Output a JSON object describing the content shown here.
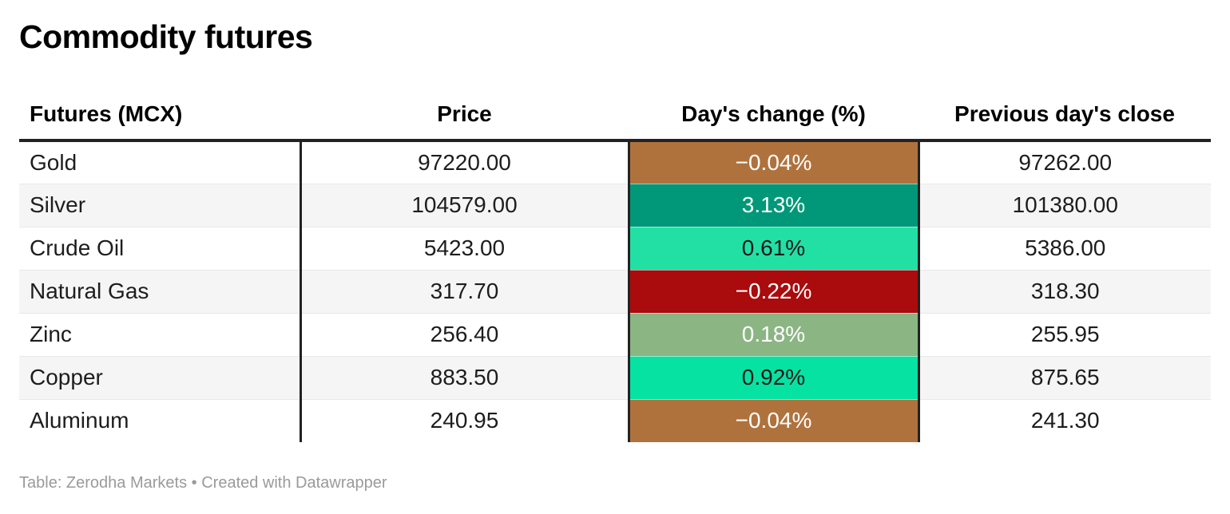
{
  "title": "Commodity futures",
  "chart_data": {
    "type": "table",
    "title": "Commodity futures",
    "columns": [
      "Futures (MCX)",
      "Price",
      "Day's change (%)",
      "Previous day's close"
    ],
    "rows": [
      {
        "futures": "Gold",
        "price": 97220.0,
        "days_change_pct": -0.04,
        "previous_close": 97262.0
      },
      {
        "futures": "Silver",
        "price": 104579.0,
        "days_change_pct": 3.13,
        "previous_close": 101380.0
      },
      {
        "futures": "Crude Oil",
        "price": 5423.0,
        "days_change_pct": 0.61,
        "previous_close": 5386.0
      },
      {
        "futures": "Natural Gas",
        "price": 317.7,
        "days_change_pct": -0.22,
        "previous_close": 318.3
      },
      {
        "futures": "Zinc",
        "price": 256.4,
        "days_change_pct": 0.18,
        "previous_close": 255.95
      },
      {
        "futures": "Copper",
        "price": 883.5,
        "days_change_pct": 0.92,
        "previous_close": 875.65
      },
      {
        "futures": "Aluminum",
        "price": 240.95,
        "days_change_pct": -0.04,
        "previous_close": 241.3
      }
    ],
    "cell_color_coding": "Day's change (%) cells are shaded on a diverging scale: dark red for larger losses, brown for small losses, sage/mint/teal greens for gains",
    "source_note": "Table: Zerodha Markets • Created with Datawrapper"
  },
  "table": {
    "columns": [
      {
        "label": "Futures (MCX)"
      },
      {
        "label": "Price"
      },
      {
        "label": "Day's change (%)"
      },
      {
        "label": "Previous day's close"
      }
    ],
    "rows": [
      {
        "name": "Gold",
        "price": "97220.00",
        "change": {
          "label": "−0.04%",
          "bg": "#b0723d",
          "fg": "#ffffff"
        },
        "prev_close": "97262.00"
      },
      {
        "name": "Silver",
        "price": "104579.00",
        "change": {
          "label": "3.13%",
          "bg": "#009878",
          "fg": "#ffffff"
        },
        "prev_close": "101380.00"
      },
      {
        "name": "Crude Oil",
        "price": "5423.00",
        "change": {
          "label": "0.61%",
          "bg": "#22e0a4",
          "fg": "#1a1a1a"
        },
        "prev_close": "5386.00"
      },
      {
        "name": "Natural Gas",
        "price": "317.70",
        "change": {
          "label": "−0.22%",
          "bg": "#aa0b0d",
          "fg": "#ffffff"
        },
        "prev_close": "318.30"
      },
      {
        "name": "Zinc",
        "price": "256.40",
        "change": {
          "label": "0.18%",
          "bg": "#8bb583",
          "fg": "#ffffff"
        },
        "prev_close": "255.95"
      },
      {
        "name": "Copper",
        "price": "883.50",
        "change": {
          "label": "0.92%",
          "bg": "#06e2a2",
          "fg": "#1a1a1a"
        },
        "prev_close": "875.65"
      },
      {
        "name": "Aluminum",
        "price": "240.95",
        "change": {
          "label": "−0.04%",
          "bg": "#b0723d",
          "fg": "#ffffff"
        },
        "prev_close": "241.30"
      }
    ]
  },
  "footer": {
    "text": "Table: Zerodha Markets • Created with Datawrapper"
  }
}
